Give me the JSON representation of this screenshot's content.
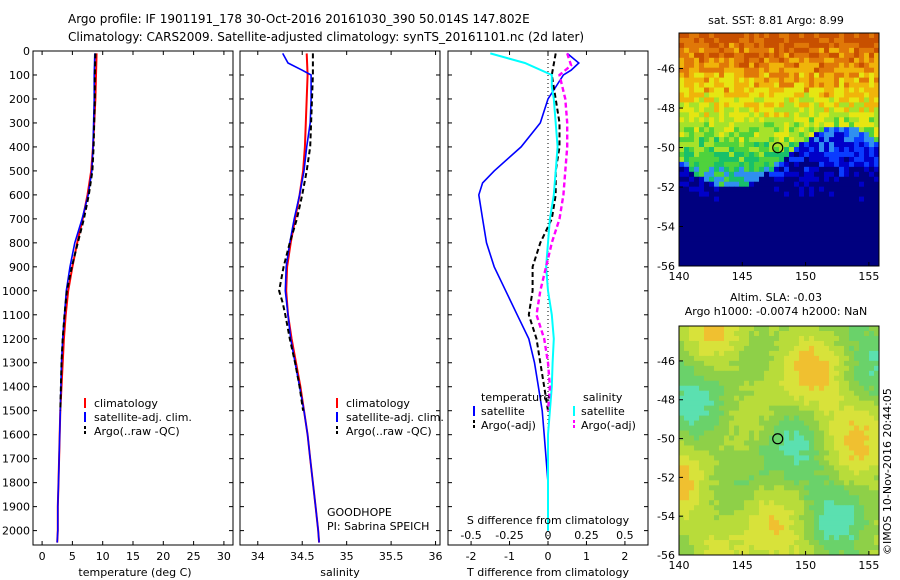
{
  "header": {
    "title_line1": "Argo profile: IF 1901191_178 30-Oct-2016 20161030_390 50.014S 147.802E",
    "title_line2": "Climatology: CARS2009. Satellite-adjusted climatology: synTS_20161101.nc (2d later)"
  },
  "depth_axis": {
    "ticks": [
      0,
      100,
      200,
      300,
      400,
      500,
      600,
      700,
      800,
      900,
      1000,
      1100,
      1200,
      1300,
      1400,
      1500,
      1600,
      1700,
      1800,
      1900,
      2000
    ],
    "ylim": [
      0,
      2060
    ]
  },
  "colors": {
    "climatology": "#ff0000",
    "satellite": "#0000ff",
    "argo": "#000000",
    "sal_satellite": "#00ffff",
    "sal_argo": "#ff00ff"
  },
  "chart_data": [
    {
      "type": "line",
      "name": "temperature-panel",
      "xlabel": "temperature (deg C)",
      "xticks": [
        0,
        5,
        10,
        15,
        20,
        25,
        30
      ],
      "xlim": [
        -1.5,
        31.5
      ],
      "ylim": [
        0,
        2060
      ],
      "legend": [
        "climatology",
        "satellite-adj. clim.",
        "Argo(..raw -QC)"
      ],
      "series": [
        {
          "key": "climatology",
          "depth": [
            10,
            100,
            200,
            300,
            400,
            500,
            600,
            700,
            800,
            900,
            1000,
            1100,
            1200,
            1300,
            1400,
            1500,
            1600,
            1700,
            1800,
            1900,
            2000,
            2050
          ],
          "values": [
            9.0,
            8.9,
            8.8,
            8.6,
            8.4,
            8.1,
            7.5,
            6.7,
            5.8,
            5.0,
            4.3,
            3.9,
            3.6,
            3.4,
            3.2,
            3.0,
            2.9,
            2.8,
            2.7,
            2.6,
            2.6,
            2.5
          ]
        },
        {
          "key": "satellite",
          "depth": [
            10,
            100,
            200,
            300,
            400,
            500,
            600,
            700,
            800,
            900,
            1000,
            1100,
            1200,
            1300,
            1400,
            1500,
            1600,
            1700,
            1800,
            1900,
            2000,
            2050
          ],
          "values": [
            8.7,
            8.6,
            8.6,
            8.5,
            8.4,
            8.2,
            7.6,
            6.6,
            5.4,
            4.6,
            4.0,
            3.7,
            3.4,
            3.2,
            3.1,
            3.0,
            2.9,
            2.8,
            2.7,
            2.6,
            2.6,
            2.5
          ]
        },
        {
          "key": "argo",
          "depth": [
            10,
            100,
            200,
            300,
            400,
            500,
            600,
            700,
            800,
            900,
            1000,
            1100,
            1200,
            1300,
            1400,
            1500
          ],
          "values": [
            8.8,
            8.7,
            8.7,
            8.6,
            8.5,
            8.3,
            7.7,
            6.9,
            5.9,
            4.9,
            4.1,
            3.7,
            3.4,
            3.2,
            3.1,
            3.0
          ]
        }
      ]
    },
    {
      "type": "line",
      "name": "salinity-panel",
      "xlabel": "salinity",
      "xticks": [
        34,
        34.5,
        35,
        35.5,
        36
      ],
      "xlim": [
        33.8,
        36.05
      ],
      "ylim": [
        0,
        2060
      ],
      "legend": [
        "climatology",
        "satellite-adj. clim.",
        "Argo(..raw -QC)"
      ],
      "series": [
        {
          "key": "climatology",
          "depth": [
            10,
            100,
            200,
            300,
            400,
            500,
            600,
            700,
            800,
            900,
            1000,
            1100,
            1200,
            1300,
            1400,
            1500,
            1600,
            1700,
            1800,
            1900,
            2000,
            2050
          ],
          "values": [
            34.55,
            34.56,
            34.55,
            34.54,
            34.53,
            34.51,
            34.47,
            34.42,
            34.37,
            34.33,
            34.32,
            34.34,
            34.38,
            34.43,
            34.48,
            34.52,
            34.56,
            34.59,
            34.62,
            34.65,
            34.68,
            34.69
          ]
        },
        {
          "key": "satellite",
          "depth": [
            10,
            50,
            80,
            100,
            150,
            200,
            300,
            400,
            500,
            600,
            700,
            800,
            900,
            1000,
            1100,
            1200,
            1300,
            1400,
            1500,
            1600,
            1700,
            1800,
            1900,
            2000,
            2050
          ],
          "values": [
            34.28,
            34.34,
            34.5,
            34.6,
            34.6,
            34.6,
            34.59,
            34.55,
            34.52,
            34.47,
            34.41,
            34.36,
            34.32,
            34.31,
            34.34,
            34.37,
            34.42,
            34.47,
            34.52,
            34.56,
            34.59,
            34.62,
            34.65,
            34.68,
            34.69
          ]
        },
        {
          "key": "argo",
          "depth": [
            10,
            100,
            200,
            300,
            400,
            500,
            600,
            700,
            800,
            900,
            1000,
            1050,
            1100,
            1200,
            1300,
            1400,
            1500
          ],
          "values": [
            34.62,
            34.62,
            34.61,
            34.6,
            34.59,
            34.55,
            34.5,
            34.44,
            34.36,
            34.29,
            34.24,
            34.28,
            34.31,
            34.36,
            34.42,
            34.47,
            34.51
          ]
        }
      ]
    },
    {
      "type": "line",
      "name": "difference-panel",
      "xlabel": "T difference from climatology",
      "xlabel_top": "S difference from climatology",
      "xticks": [
        -2,
        -1,
        0,
        1,
        2
      ],
      "xticks_s": [
        -0.5,
        -0.25,
        0,
        0.25,
        0.5
      ],
      "xlim": [
        -2.6,
        2.6
      ],
      "ylim": [
        0,
        2060
      ],
      "legend_left_title": "temperature",
      "legend_right_title": "salinity",
      "legend_left": [
        "satellite",
        "Argo(-adj)"
      ],
      "legend_right": [
        "satellite",
        "Argo(-adj)"
      ],
      "series": [
        {
          "key": "t_satellite",
          "depth": [
            10,
            50,
            80,
            100,
            150,
            200,
            300,
            400,
            500,
            550,
            600,
            700,
            800,
            900,
            1000,
            1100,
            1200,
            1300,
            1400,
            1500,
            1600,
            1700,
            1800,
            1900,
            2000
          ],
          "values": [
            0.5,
            0.8,
            0.6,
            0.4,
            0.2,
            0.0,
            -0.2,
            -0.7,
            -1.4,
            -1.7,
            -1.8,
            -1.7,
            -1.6,
            -1.4,
            -1.1,
            -0.8,
            -0.5,
            -0.35,
            -0.25,
            -0.15,
            -0.1,
            -0.05,
            0.0,
            0.0,
            0.0
          ]
        },
        {
          "key": "t_argo",
          "depth": [
            10,
            100,
            200,
            300,
            400,
            500,
            600,
            700,
            800,
            900,
            1000,
            1100,
            1200,
            1300,
            1400,
            1500
          ],
          "values": [
            0.2,
            0.1,
            0.2,
            0.3,
            0.3,
            0.2,
            0.2,
            0.1,
            -0.2,
            -0.4,
            -0.4,
            -0.5,
            -0.3,
            -0.2,
            -0.1,
            0.0
          ]
        },
        {
          "key": "s_satellite",
          "depth": [
            10,
            50,
            100,
            150,
            200,
            300,
            400,
            500,
            600,
            700,
            800,
            900,
            1000,
            1100,
            1200,
            1300,
            1400,
            1500,
            1600,
            1700,
            1800,
            1900,
            2000
          ],
          "values": [
            -1.5,
            -0.6,
            0.1,
            0.1,
            0.15,
            0.2,
            0.25,
            0.2,
            0.15,
            0.05,
            0.0,
            -0.05,
            0.0,
            0.1,
            0.15,
            0.12,
            0.1,
            0.05,
            0.0,
            0.0,
            0.0,
            0.0,
            0.0
          ]
        },
        {
          "key": "s_argo",
          "depth": [
            10,
            60,
            100,
            200,
            300,
            400,
            500,
            600,
            700,
            800,
            900,
            1000,
            1100,
            1200,
            1300,
            1400,
            1500
          ],
          "values": [
            0.5,
            0.6,
            0.3,
            0.45,
            0.5,
            0.5,
            0.45,
            0.4,
            0.3,
            0.1,
            -0.05,
            -0.2,
            -0.3,
            -0.1,
            0.0,
            0.05,
            0.0
          ]
        }
      ]
    },
    {
      "type": "heatmap",
      "name": "sst-map",
      "title": "sat. SST: 8.81  Argo: 8.99",
      "xticks": [
        140,
        145,
        150,
        155
      ],
      "yticks": [
        -46,
        -48,
        -50,
        -52,
        -54,
        -56
      ],
      "xlim": [
        140,
        155.8
      ],
      "ylim": [
        -56,
        -44.2
      ],
      "marker": {
        "lon": 147.8,
        "lat": -50.01
      }
    },
    {
      "type": "heatmap",
      "name": "sla-map",
      "title_line1": "Altim. SLA: -0.03",
      "title_line2": "Argo h1000: -0.0074  h2000: NaN",
      "xticks": [
        140,
        145,
        150,
        155
      ],
      "yticks": [
        -46,
        -48,
        -50,
        -52,
        -54,
        -56
      ],
      "xlim": [
        140,
        155.8
      ],
      "ylim": [
        -56,
        -44.2
      ],
      "marker": {
        "lon": 147.8,
        "lat": -50.01
      }
    }
  ],
  "annotations": {
    "cruise": "GOODHOPE",
    "pi": "PI: Sabrina SPEICH",
    "stamp": "©IMOS 10-Nov-2016 20:44:05"
  }
}
